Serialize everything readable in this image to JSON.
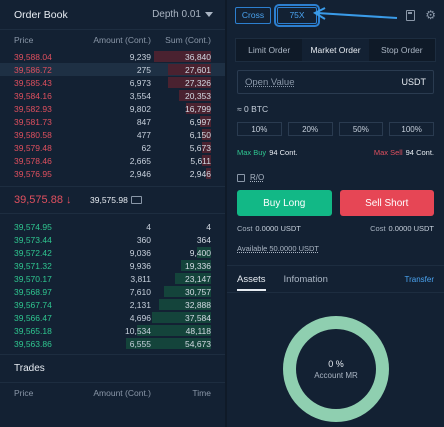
{
  "orderbook": {
    "title": "Order Book",
    "depth": "Depth 0.01",
    "cols": {
      "price": "Price",
      "amount": "Amount (Cont.)",
      "sum": "Sum (Cont.)"
    },
    "asks": [
      {
        "price": "39,588.04",
        "amount": "9,239",
        "sum": "36,840",
        "fill": 0.36
      },
      {
        "price": "39,586.72",
        "amount": "275",
        "sum": "27,601",
        "fill": 0.27
      },
      {
        "price": "39,585.43",
        "amount": "6,973",
        "sum": "27,326",
        "fill": 0.27
      },
      {
        "price": "39,584.16",
        "amount": "3,554",
        "sum": "20,353",
        "fill": 0.2
      },
      {
        "price": "39,582.93",
        "amount": "9,802",
        "sum": "16,799",
        "fill": 0.16
      },
      {
        "price": "39,581.73",
        "amount": "847",
        "sum": "6,997",
        "fill": 0.07
      },
      {
        "price": "39,580.58",
        "amount": "477",
        "sum": "6,150",
        "fill": 0.06
      },
      {
        "price": "39,579.48",
        "amount": "62",
        "sum": "5,673",
        "fill": 0.055
      },
      {
        "price": "39,578.46",
        "amount": "2,665",
        "sum": "5,611",
        "fill": 0.055
      },
      {
        "price": "39,576.95",
        "amount": "2,946",
        "sum": "2,946",
        "fill": 0.03
      }
    ],
    "last_price": "39,575.88",
    "down_arrow": "↓",
    "mark_price": "39,575.98",
    "bids": [
      {
        "price": "39,574.95",
        "amount": "4",
        "sum": "4",
        "fill": 0.0
      },
      {
        "price": "39,573.44",
        "amount": "360",
        "sum": "364",
        "fill": 0.0
      },
      {
        "price": "39,572.42",
        "amount": "9,036",
        "sum": "9,400",
        "fill": 0.09
      },
      {
        "price": "39,571.32",
        "amount": "9,936",
        "sum": "19,336",
        "fill": 0.19
      },
      {
        "price": "39,570.17",
        "amount": "3,811",
        "sum": "23,147",
        "fill": 0.23
      },
      {
        "price": "39,568.97",
        "amount": "7,610",
        "sum": "30,757",
        "fill": 0.3
      },
      {
        "price": "39,567.74",
        "amount": "2,131",
        "sum": "32,888",
        "fill": 0.33
      },
      {
        "price": "39,566.47",
        "amount": "4,696",
        "sum": "37,584",
        "fill": 0.37
      },
      {
        "price": "39,565.18",
        "amount": "10,534",
        "sum": "48,118",
        "fill": 0.47
      },
      {
        "price": "39,563.86",
        "amount": "6,555",
        "sum": "54,673",
        "fill": 0.54
      }
    ]
  },
  "trades": {
    "title": "Trades",
    "cols": {
      "price": "Price",
      "amount": "Amount (Cont.)",
      "time": "Time"
    }
  },
  "topbar": {
    "margin_mode": "Cross",
    "leverage": "75X"
  },
  "order_tabs": [
    {
      "label": "Limit Order",
      "active": false
    },
    {
      "label": "Market Order",
      "active": true
    },
    {
      "label": "Stop Order",
      "active": false
    }
  ],
  "open_value": {
    "placeholder": "Open Value",
    "unit": "USDT"
  },
  "approx": "≈ 0 BTC",
  "percents": [
    "10%",
    "20%",
    "50%",
    "100%"
  ],
  "max": {
    "buy_label": "Max Buy",
    "buy_value": "94 Cont.",
    "sell_label": "Max Sell",
    "sell_value": "94 Cont."
  },
  "reduce_only": "R/O",
  "buttons": {
    "buy": "Buy Long",
    "sell": "Sell Short"
  },
  "cost": {
    "label": "Cost",
    "buy": "0.0000 USDT",
    "sell": "0.0000 USDT"
  },
  "available": "Available 50.0000 USDT",
  "assets": {
    "tab1": "Assets",
    "tab2": "Infomation",
    "transfer": "Transfer",
    "value": "0 %",
    "label": "Account MR",
    "ratio": 0
  }
}
